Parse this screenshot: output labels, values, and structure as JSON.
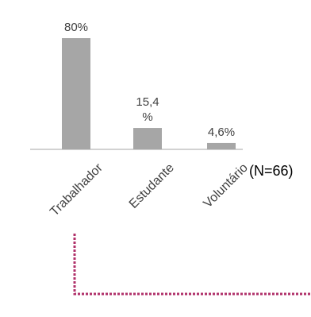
{
  "chart_data": {
    "type": "bar",
    "categories": [
      "Trabalhador",
      "Estudante",
      "Voluntário"
    ],
    "values": [
      80,
      15.4,
      4.6
    ],
    "data_labels": [
      "80%",
      "15,4\n%",
      "4,6%"
    ],
    "ylim": [
      0,
      80
    ],
    "grid": false,
    "legend": "none",
    "bar_color": "#a6a6a6",
    "axis_color": "#a6a6a6"
  },
  "note": "(N=66)",
  "connector_color": "#b0306a"
}
